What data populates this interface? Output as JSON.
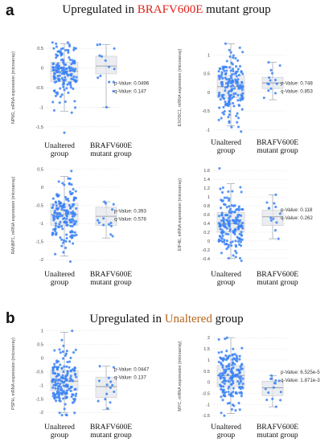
{
  "panel_a": {
    "letter": "a",
    "title_before": "Upregulated in ",
    "title_highlight": "BRAFV600E",
    "title_after": " mutant group",
    "highlight_color": "#e0221b"
  },
  "panel_b": {
    "letter": "b",
    "title_before": "Upregulated in ",
    "title_highlight": "Unaltered",
    "title_after": " group",
    "highlight_color": "#b5651d"
  },
  "colors": {
    "dot": "#3b82f6",
    "dot_dark": "#2563eb",
    "box_fill": "#e5e7eb",
    "whisker": "#9aa3ad"
  },
  "chart_data": [
    {
      "type": "box",
      "ylabel": "NPM1, mRNA expression (microarray)",
      "categories": [
        "Unaltered group",
        "BRAFV600E mutant group"
      ],
      "ylim": [
        -1.75,
        0.75
      ],
      "yticks": [
        0.5,
        0,
        -0.5,
        -1,
        -1.5
      ],
      "tick_labels": [
        "0.5",
        "0",
        "-0.5",
        "-1",
        "-1.5"
      ],
      "stats": {
        "p_label": "p-Value: 0.0496",
        "q_label": "q-Value: 0.147"
      },
      "groups": [
        {
          "n": 160,
          "q1": -0.35,
          "median": -0.08,
          "q3": 0.15,
          "whisker_low": -1.1,
          "whisker_high": 0.62,
          "low": -1.65,
          "high": 0.65
        },
        {
          "n": 14,
          "q1": -0.15,
          "median": 0.05,
          "q3": 0.3,
          "whisker_low": -1.0,
          "whisker_high": 0.6,
          "low": -1.0,
          "high": 0.6
        }
      ]
    },
    {
      "type": "box",
      "ylabel": "EXOSC1, mRNA expression (microarray)",
      "categories": [
        "Unaltered group",
        "BRAFV600E mutant group"
      ],
      "ylim": [
        -1.1,
        1.35
      ],
      "yticks": [
        1,
        0.5,
        0,
        -0.5,
        -1
      ],
      "tick_labels": [
        "1",
        "0.5",
        "0",
        "-0.5",
        "-1"
      ],
      "stats": {
        "p_label": "p-Value: 0.748",
        "q_label": "q-Value: 0.853"
      },
      "groups": [
        {
          "n": 170,
          "q1": -0.15,
          "median": 0.15,
          "q3": 0.45,
          "whisker_low": -0.9,
          "whisker_high": 1.3,
          "low": -1.05,
          "high": 1.3
        },
        {
          "n": 14,
          "q1": 0.1,
          "median": 0.25,
          "q3": 0.4,
          "whisker_low": -0.2,
          "whisker_high": 0.8,
          "low": -0.15,
          "high": 0.8
        }
      ]
    },
    {
      "type": "box",
      "ylabel": "RANBP1, mRNA expression (microarray)",
      "categories": [
        "Unaltered group",
        "BRAFV600E mutant group"
      ],
      "ylim": [
        -2.15,
        0.6
      ],
      "yticks": [
        0.5,
        0,
        -0.5,
        -1,
        -1.5,
        -2
      ],
      "tick_labels": [
        "0.5",
        "0",
        "-0.5",
        "-1",
        "-1.5",
        "-2"
      ],
      "stats": {
        "p_label": "p-Value: 0.393",
        "q_label": "q-Value: 0.578"
      },
      "groups": [
        {
          "n": 170,
          "q1": -1.05,
          "median": -0.75,
          "q3": -0.45,
          "whisker_low": -1.9,
          "whisker_high": 0.3,
          "low": -2.05,
          "high": 0.45
        },
        {
          "n": 13,
          "q1": -1.05,
          "median": -0.8,
          "q3": -0.55,
          "whisker_low": -1.4,
          "whisker_high": -0.4,
          "low": -1.35,
          "high": -0.4
        }
      ]
    },
    {
      "type": "box",
      "ylabel": "EIF4E, mRNA expression (microarray)",
      "categories": [
        "Unaltered group",
        "BRAFV600E mutant group"
      ],
      "ylim": [
        -0.55,
        1.75
      ],
      "yticks": [
        1.6,
        1.4,
        1.2,
        1,
        0.8,
        0.6,
        0.4,
        0.2,
        0,
        -0.2,
        -0.4
      ],
      "tick_labels": [
        "1.6",
        "1.4",
        "1.2",
        "1",
        "0.8",
        "0.6",
        "0.4",
        "0.2",
        "0",
        "-0.2",
        "-0.4"
      ],
      "stats": {
        "p_label": "p-Value: 0.118",
        "q_label": "q-Value: 0.262"
      },
      "groups": [
        {
          "n": 170,
          "q1": 0.2,
          "median": 0.4,
          "q3": 0.65,
          "whisker_low": -0.4,
          "whisker_high": 1.3,
          "low": -0.45,
          "high": 1.65
        },
        {
          "n": 13,
          "q1": 0.35,
          "median": 0.55,
          "q3": 0.7,
          "whisker_low": 0.05,
          "whisker_high": 1.05,
          "low": 0.05,
          "high": 1.05
        }
      ]
    },
    {
      "type": "box",
      "ylabel": "PSPH, mRNA expression (microarray)",
      "categories": [
        "Unaltered group",
        "BRAFV600E mutant group"
      ],
      "ylim": [
        -2.2,
        1.05
      ],
      "yticks": [
        1,
        0.5,
        0,
        -0.5,
        -1,
        -1.5,
        -2
      ],
      "tick_labels": [
        "1",
        "0.5",
        "0",
        "-0.5",
        "-1",
        "-1.5",
        "-2"
      ],
      "stats": {
        "p_label": "p-Value: 0.0447",
        "q_label": "q-Value: 0.137"
      },
      "groups": [
        {
          "n": 170,
          "q1": -1.2,
          "median": -0.85,
          "q3": -0.45,
          "whisker_low": -2.0,
          "whisker_high": 0.95,
          "low": -2.1,
          "high": 1.0
        },
        {
          "n": 14,
          "q1": -1.45,
          "median": -1.05,
          "q3": -0.7,
          "whisker_low": -1.9,
          "whisker_high": -0.3,
          "low": -1.85,
          "high": -0.3
        }
      ]
    },
    {
      "type": "box",
      "ylabel": "MYC, mRNA expression (microarray)",
      "categories": [
        "Unaltered group",
        "BRAFV600E mutant group"
      ],
      "ylim": [
        -1.6,
        2.15
      ],
      "yticks": [
        2,
        1.5,
        1,
        0.5,
        0,
        -0.5,
        -1,
        -1.5
      ],
      "tick_labels": [
        "2",
        "1.5",
        "1",
        "0.5",
        "0",
        "-0.5",
        "-1",
        "-1.5"
      ],
      "stats": {
        "p_label": "p-Value: 6.525e-5",
        "q_label": "q-Value: 1.871e-3"
      },
      "groups": [
        {
          "n": 170,
          "q1": -0.2,
          "median": 0.3,
          "q3": 0.75,
          "whisker_low": -1.4,
          "whisker_high": 2.0,
          "low": -1.5,
          "high": 2.0
        },
        {
          "n": 15,
          "q1": -0.6,
          "median": -0.25,
          "q3": 0.05,
          "whisker_low": -1.1,
          "whisker_high": 0.3,
          "low": -1.1,
          "high": 0.3
        }
      ]
    }
  ]
}
